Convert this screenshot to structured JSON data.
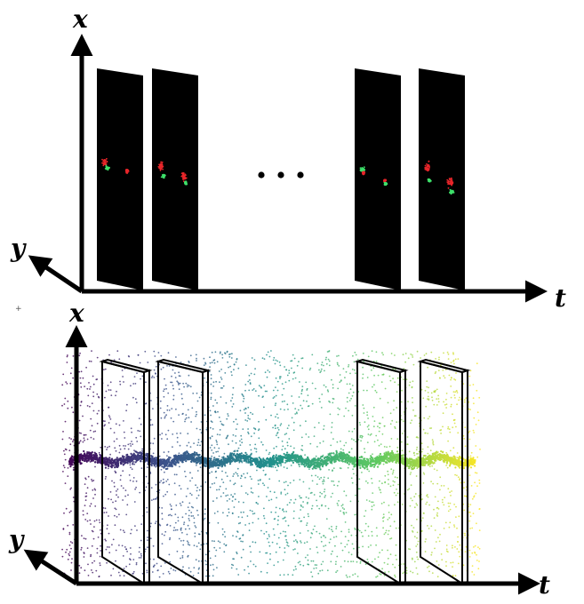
{
  "colors": {
    "axis": "#000000",
    "frame_fill": "#000000",
    "event_red": "#e8262a",
    "event_green": "#3ee06a",
    "viridis": [
      "#440154",
      "#3b528b",
      "#21918c",
      "#5ec962",
      "#fde725"
    ]
  },
  "top_panel": {
    "axis_labels": {
      "x": "x",
      "y": "y",
      "t": "t"
    },
    "ellipsis": "• • •"
  },
  "bottom_panel": {
    "axis_labels": {
      "x": "x",
      "y": "y",
      "t": "t"
    }
  }
}
